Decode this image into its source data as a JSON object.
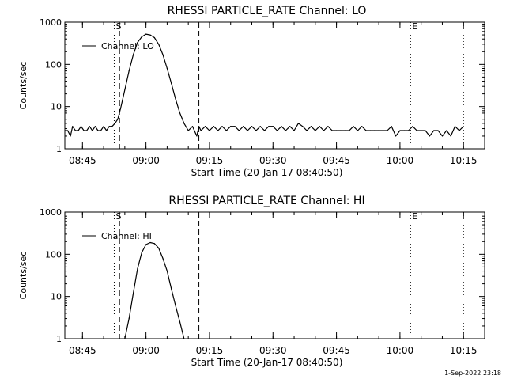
{
  "chart_data": [
    {
      "type": "line",
      "title": "RHESSI PARTICLE_RATE Channel: LO",
      "xlabel": "Start Time (20-Jan-17 08:40:50)",
      "ylabel": "Counts/sec",
      "yscale": "log",
      "ylim": [
        1,
        1000
      ],
      "xlim": [
        "08:40:50",
        "10:20:00"
      ],
      "x_ticks": [
        "08:45",
        "09:00",
        "09:15",
        "09:30",
        "09:45",
        "10:00",
        "10:15"
      ],
      "y_ticks": [
        "1",
        "10",
        "100",
        "1000"
      ],
      "legend": {
        "placement": "top-left",
        "entries": [
          "Channel: LO"
        ]
      },
      "markers": [
        {
          "time": "08:52:30",
          "style": "dotted",
          "label": "S"
        },
        {
          "time": "08:53:45",
          "style": "dashed",
          "label": ""
        },
        {
          "time": "09:12:30",
          "style": "dashed",
          "label": ""
        },
        {
          "time": "10:02:30",
          "style": "dotted",
          "label": "E"
        },
        {
          "time": "10:15:00",
          "style": "dotted",
          "label": ""
        }
      ],
      "series": [
        {
          "name": "Channel: LO",
          "x": [
            "08:40:50",
            "08:41:30",
            "08:42:10",
            "08:42:40",
            "08:43:20",
            "08:44:00",
            "08:44:40",
            "08:45:20",
            "08:46:00",
            "08:46:40",
            "08:47:20",
            "08:48:00",
            "08:48:40",
            "08:49:20",
            "08:50:00",
            "08:50:40",
            "08:51:20",
            "08:52:00",
            "08:52:40",
            "08:53:20",
            "08:54:00",
            "08:55:00",
            "08:56:00",
            "08:57:00",
            "08:58:00",
            "08:59:00",
            "09:00:00",
            "09:01:00",
            "09:02:00",
            "09:03:00",
            "09:04:00",
            "09:05:00",
            "09:06:00",
            "09:07:00",
            "09:08:00",
            "09:09:00",
            "09:10:00",
            "09:11:00",
            "09:12:00",
            "09:12:30",
            "09:13:00",
            "09:14:00",
            "09:15:00",
            "09:16:00",
            "09:17:00",
            "09:18:00",
            "09:19:00",
            "09:20:00",
            "09:21:00",
            "09:22:00",
            "09:23:00",
            "09:24:00",
            "09:25:00",
            "09:26:00",
            "09:27:00",
            "09:28:00",
            "09:29:00",
            "09:30:00",
            "09:31:00",
            "09:32:00",
            "09:33:00",
            "09:34:00",
            "09:35:00",
            "09:36:00",
            "09:37:00",
            "09:38:00",
            "09:39:00",
            "09:40:00",
            "09:41:00",
            "09:42:00",
            "09:43:00",
            "09:44:00",
            "09:45:00",
            "09:46:00",
            "09:47:00",
            "09:48:00",
            "09:49:00",
            "09:50:00",
            "09:51:00",
            "09:52:00",
            "09:53:00",
            "09:54:00",
            "09:55:00",
            "09:56:00",
            "09:57:00",
            "09:58:00",
            "09:59:00",
            "10:00:00",
            "10:01:00",
            "10:02:00",
            "10:03:00",
            "10:04:00",
            "10:05:00",
            "10:06:00",
            "10:07:00",
            "10:08:00",
            "10:09:00",
            "10:10:00",
            "10:11:00",
            "10:12:00",
            "10:13:00",
            "10:14:00",
            "10:15:00"
          ],
          "y": [
            2.7,
            2.7,
            2.0,
            3.4,
            2.7,
            2.7,
            3.4,
            2.7,
            2.7,
            3.4,
            2.7,
            3.4,
            2.7,
            2.7,
            3.4,
            2.7,
            3.4,
            3.4,
            4.0,
            5.0,
            9,
            25,
            70,
            170,
            330,
            450,
            520,
            500,
            430,
            300,
            170,
            80,
            35,
            15,
            7,
            4,
            2.7,
            3.4,
            2.0,
            3.4,
            2.7,
            3.4,
            2.7,
            3.4,
            2.7,
            3.4,
            2.7,
            3.4,
            3.4,
            2.7,
            3.4,
            2.7,
            3.4,
            2.7,
            3.4,
            2.7,
            3.4,
            3.4,
            2.7,
            3.4,
            2.7,
            3.4,
            2.7,
            4.0,
            3.4,
            2.7,
            3.4,
            2.7,
            3.4,
            2.7,
            3.4,
            2.7,
            2.7,
            2.7,
            2.7,
            2.7,
            3.4,
            2.7,
            3.4,
            2.7,
            2.7,
            2.7,
            2.7,
            2.7,
            2.7,
            3.4,
            2.0,
            2.7,
            2.7,
            2.7,
            3.4,
            2.7,
            2.7,
            2.7,
            2.0,
            2.7,
            2.7,
            2.0,
            2.7,
            2.0,
            3.4,
            2.7,
            3.4
          ]
        }
      ]
    },
    {
      "type": "line",
      "title": "RHESSI PARTICLE_RATE Channel: HI",
      "xlabel": "Start Time (20-Jan-17 08:40:50)",
      "ylabel": "Counts/sec",
      "yscale": "log",
      "ylim": [
        1,
        1000
      ],
      "xlim": [
        "08:40:50",
        "10:20:00"
      ],
      "x_ticks": [
        "08:45",
        "09:00",
        "09:15",
        "09:30",
        "09:45",
        "10:00",
        "10:15"
      ],
      "y_ticks": [
        "1",
        "10",
        "100",
        "1000"
      ],
      "legend": {
        "placement": "top-left",
        "entries": [
          "Channel: HI"
        ]
      },
      "markers": [
        {
          "time": "08:52:30",
          "style": "dotted",
          "label": "S"
        },
        {
          "time": "08:53:45",
          "style": "dashed",
          "label": ""
        },
        {
          "time": "09:12:30",
          "style": "dashed",
          "label": ""
        },
        {
          "time": "10:02:30",
          "style": "dotted",
          "label": "E"
        },
        {
          "time": "10:15:00",
          "style": "dotted",
          "label": ""
        }
      ],
      "series": [
        {
          "name": "Channel: HI",
          "x": [
            "08:55:00",
            "08:56:00",
            "08:57:00",
            "08:58:00",
            "08:59:00",
            "09:00:00",
            "09:01:00",
            "09:02:00",
            "09:03:00",
            "09:04:00",
            "09:05:00",
            "09:06:00",
            "09:07:00",
            "09:08:00",
            "09:09:00"
          ],
          "y": [
            1.0,
            3.0,
            12,
            45,
            110,
            170,
            190,
            180,
            140,
            80,
            40,
            15,
            6,
            2.5,
            1.0
          ]
        }
      ]
    }
  ],
  "footer": {
    "timestamp": "1-Sep-2022 23:18"
  }
}
